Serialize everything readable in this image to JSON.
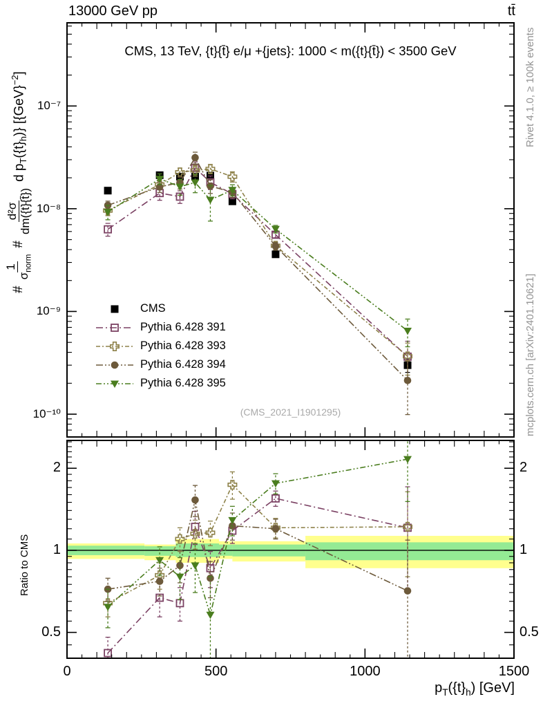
{
  "header": {
    "left": "13000 GeV pp",
    "right": "tt̄"
  },
  "panel_title": "CMS, 13 TeV, {t}{t̄} e/μ +{jets}: 1000 < m({t}{t̄}) < 3500 GeV",
  "watermark": "(CMS_2021_I1901295)",
  "side_notes": {
    "rivet": "Rivet 4.1.0, ≥ 100k events",
    "mcplots": "mcplots.cern.ch [arXiv:2401.10621]"
  },
  "ratio_ylabel": "Ratio to CMS",
  "ylabel": {
    "hash1": "#",
    "frac1_num": "1",
    "frac1_den_base": "σ",
    "frac1_den_sub": "norm",
    "hash2": "#",
    "frac2_num": "d²σ",
    "frac2_den": "dm({t}{t̄})",
    "tail_a": " d p",
    "tail_a_sub": "T",
    "tail_b": "({t}",
    "tail_b_sub": "h",
    "tail_c": ")} [{GeV}",
    "tail_c_sup": "−2",
    "tail_d": "]"
  },
  "xlabel": {
    "a": "p",
    "a_sub": "T",
    "b": "({t}",
    "b_sub": "h",
    "c": ") [GeV]"
  },
  "chart_data": {
    "type": "scatter",
    "title": "CMS, 13 TeV, {t}{t̄} e/μ +{jets}: 1000 < m({t}{t̄}) < 3500 GeV",
    "xlabel": "p_T({t}_h) [GeV]",
    "ylabel": "#1/σ_norm #d²σ/dm({t}{t̄}) d p_T({t}_h)} [{GeV}^-2]",
    "ratio_label": "Ratio to CMS",
    "yscale": "log",
    "xlim": [
      0,
      1500
    ],
    "main_ylim": [
      6e-11,
      6.45e-07
    ],
    "ratio_ylim": [
      0.402,
      2.53
    ],
    "x_major_ticks": [
      0,
      500,
      1000,
      1500
    ],
    "x_minor_step": 50,
    "main_yticks": [
      {
        "v": 1e-07,
        "label": "10⁻⁷"
      },
      {
        "v": 1e-08,
        "label": "10⁻⁸"
      },
      {
        "v": 1e-09,
        "label": "10⁻⁹"
      },
      {
        "v": 1e-10,
        "label": "10⁻¹⁰"
      }
    ],
    "ratio_yticks": [
      {
        "v": 2,
        "label": "2"
      },
      {
        "v": 1,
        "label": "1"
      },
      {
        "v": 0.5,
        "label": "0.5"
      }
    ],
    "x": [
      137,
      311,
      379,
      430,
      481,
      555,
      700,
      1143
    ],
    "series": [
      {
        "name": "CMS",
        "marker": "square-filled",
        "color": "#000000",
        "dash": null,
        "y": [
          1.5e-08,
          2.12e-08,
          2.05e-08,
          2.05e-08,
          2.1e-08,
          1.18e-08,
          3.6e-09,
          3e-10
        ],
        "yerr_rel": [
          0.04,
          0.03,
          0.03,
          0.04,
          0.04,
          0.04,
          0.06,
          0.15
        ],
        "ratio": null,
        "ratio_err": null
      },
      {
        "name": "Pythia 6.428 391",
        "marker": "square-open",
        "color": "#7b4163",
        "dash": "10,4,2,4",
        "y": [
          6.3e-09,
          1.42e-08,
          1.31e-08,
          2.5e-08,
          1.81e-08,
          1.39e-08,
          5.58e-09,
          3.63e-10
        ],
        "yerr_rel": null,
        "ratio": [
          0.42,
          0.67,
          0.64,
          1.22,
          0.86,
          1.18,
          1.55,
          1.21
        ],
        "ratio_err": [
          0.06,
          0.1,
          0.09,
          0.17,
          0.13,
          0.12,
          0.1,
          0.5
        ]
      },
      {
        "name": "Pythia 6.428 393",
        "marker": "cross-open",
        "color": "#8d8149",
        "dash": "6,3,2,3",
        "y": [
          9.6e-09,
          1.72e-08,
          2.26e-08,
          2.36e-08,
          2.44e-08,
          2.05e-08,
          4.36e-09,
          3.66e-10
        ],
        "yerr_rel": null,
        "ratio": [
          0.64,
          0.81,
          1.1,
          1.15,
          1.16,
          1.74,
          1.21,
          1.22
        ],
        "ratio_err": [
          0.07,
          0.09,
          0.11,
          0.14,
          0.12,
          0.2,
          0.1,
          0.42
        ]
      },
      {
        "name": "Pythia 6.428 394",
        "marker": "circle-filled",
        "color": "#6d5a3b",
        "dash": "10,3,2,3,2,3",
        "y": [
          1.08e-08,
          1.63e-08,
          1.8e-08,
          3.14e-08,
          1.66e-08,
          1.45e-08,
          4.32e-09,
          2.13e-10
        ],
        "yerr_rel": null,
        "ratio": [
          0.72,
          0.77,
          0.88,
          1.53,
          0.79,
          1.23,
          1.2,
          0.71
        ],
        "ratio_err": [
          0.07,
          0.09,
          0.12,
          0.2,
          0.12,
          0.14,
          0.1,
          0.38
        ]
      },
      {
        "name": "Pythia 6.428 395",
        "marker": "triangle-down-filled",
        "color": "#4a7d1e",
        "dash": "8,3,2,3,2,3",
        "y": [
          9.3e-09,
          1.95e-08,
          1.64e-08,
          1.8e-08,
          1.22e-08,
          1.52e-08,
          6.34e-09,
          6.48e-10
        ],
        "yerr_rel": null,
        "ratio": [
          0.62,
          0.92,
          0.8,
          0.88,
          0.58,
          1.29,
          1.76,
          2.16
        ],
        "ratio_err": [
          0.1,
          0.11,
          0.14,
          0.18,
          0.22,
          0.16,
          0.15,
          0.65
        ]
      }
    ],
    "ratio_ref_line": 1,
    "ratio_bands": {
      "outer_color": "#ffff8e",
      "inner_color": "#94ea94",
      "segments": [
        {
          "x": [
            0,
            260
          ],
          "outer": [
            0.93,
            1.06
          ],
          "inner": [
            0.96,
            1.04
          ]
        },
        {
          "x": [
            260,
            365
          ],
          "outer": [
            0.92,
            1.05
          ],
          "inner": [
            0.955,
            1.035
          ]
        },
        {
          "x": [
            365,
            510
          ],
          "outer": [
            0.9,
            1.1
          ],
          "inner": [
            0.945,
            1.06
          ]
        },
        {
          "x": [
            510,
            555
          ],
          "outer": [
            0.93,
            1.08
          ],
          "inner": [
            0.955,
            1.05
          ]
        },
        {
          "x": [
            555,
            800
          ],
          "outer": [
            0.91,
            1.08
          ],
          "inner": [
            0.95,
            1.05
          ]
        },
        {
          "x": [
            800,
            1500
          ],
          "outer": [
            0.86,
            1.13
          ],
          "inner": [
            0.92,
            1.07
          ]
        }
      ]
    },
    "legend_position": "middle-left"
  }
}
